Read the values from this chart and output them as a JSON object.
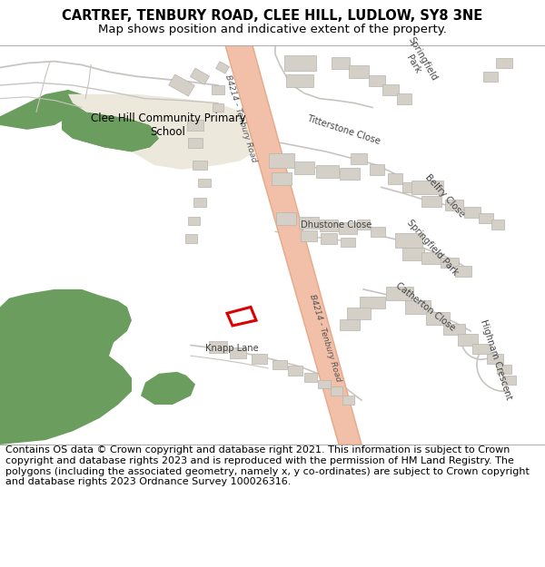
{
  "title_line1": "CARTREF, TENBURY ROAD, CLEE HILL, LUDLOW, SY8 3NE",
  "title_line2": "Map shows position and indicative extent of the property.",
  "footer_text": "Contains OS data © Crown copyright and database right 2021. This information is subject to Crown copyright and database rights 2023 and is reproduced with the permission of HM Land Registry. The polygons (including the associated geometry, namely x, y co-ordinates) are subject to Crown copyright and database rights 2023 Ordnance Survey 100026316.",
  "road_color": "#f2bfa8",
  "road_edge_color": "#e8a888",
  "green_color": "#6b9e5e",
  "school_fill": "#ede8dc",
  "building_fill": "#d4d0c8",
  "building_outline": "#b8b4ac",
  "plot_outline": "#dd0000",
  "title_fontsize": 10.5,
  "subtitle_fontsize": 9.5,
  "footer_fontsize": 8.0,
  "label_fontsize": 7.2,
  "road_label_fontsize": 6.5,
  "road_label_color": "#555555",
  "street_color": "#c8c4c0",
  "text_color": "#444444"
}
